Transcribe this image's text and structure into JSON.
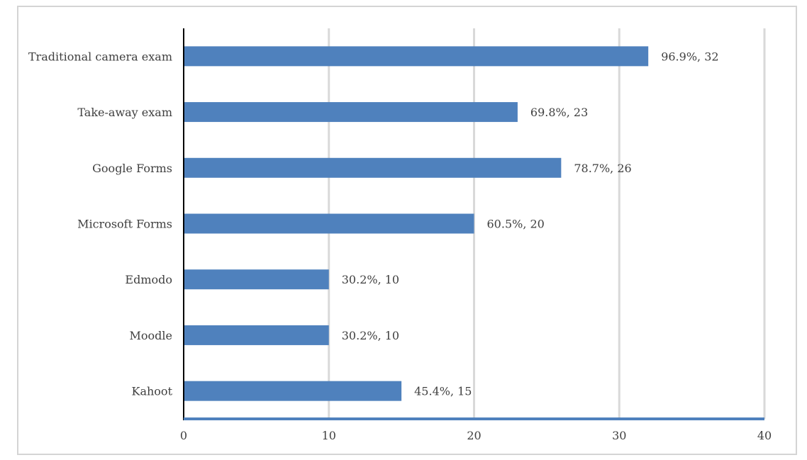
{
  "chart_data": {
    "type": "bar",
    "orientation": "horizontal",
    "title": "",
    "xlabel": "",
    "ylabel": "",
    "categories": [
      "Traditional camera exam",
      "Take-away exam",
      "Google Forms",
      "Microsoft Forms",
      "Edmodo",
      "Moodle",
      "Kahoot"
    ],
    "values": [
      32,
      23,
      26,
      20,
      10,
      10,
      15
    ],
    "data_labels": [
      "96.9%, 32",
      "69.8%, 23",
      "78.7%, 26",
      "60.5%, 20",
      "30.2%, 10",
      "30.2%, 10",
      "45.4%, 15"
    ],
    "xlim": [
      0,
      40
    ],
    "x_ticks": [
      0,
      10,
      20,
      30,
      40
    ],
    "grid": true,
    "legend": "none",
    "colors": {
      "bar": "#4f81bd",
      "axis": "#4f81bd",
      "grid": "#d9d9d9",
      "text": "#404040",
      "frame": "#d4d4d4"
    }
  }
}
